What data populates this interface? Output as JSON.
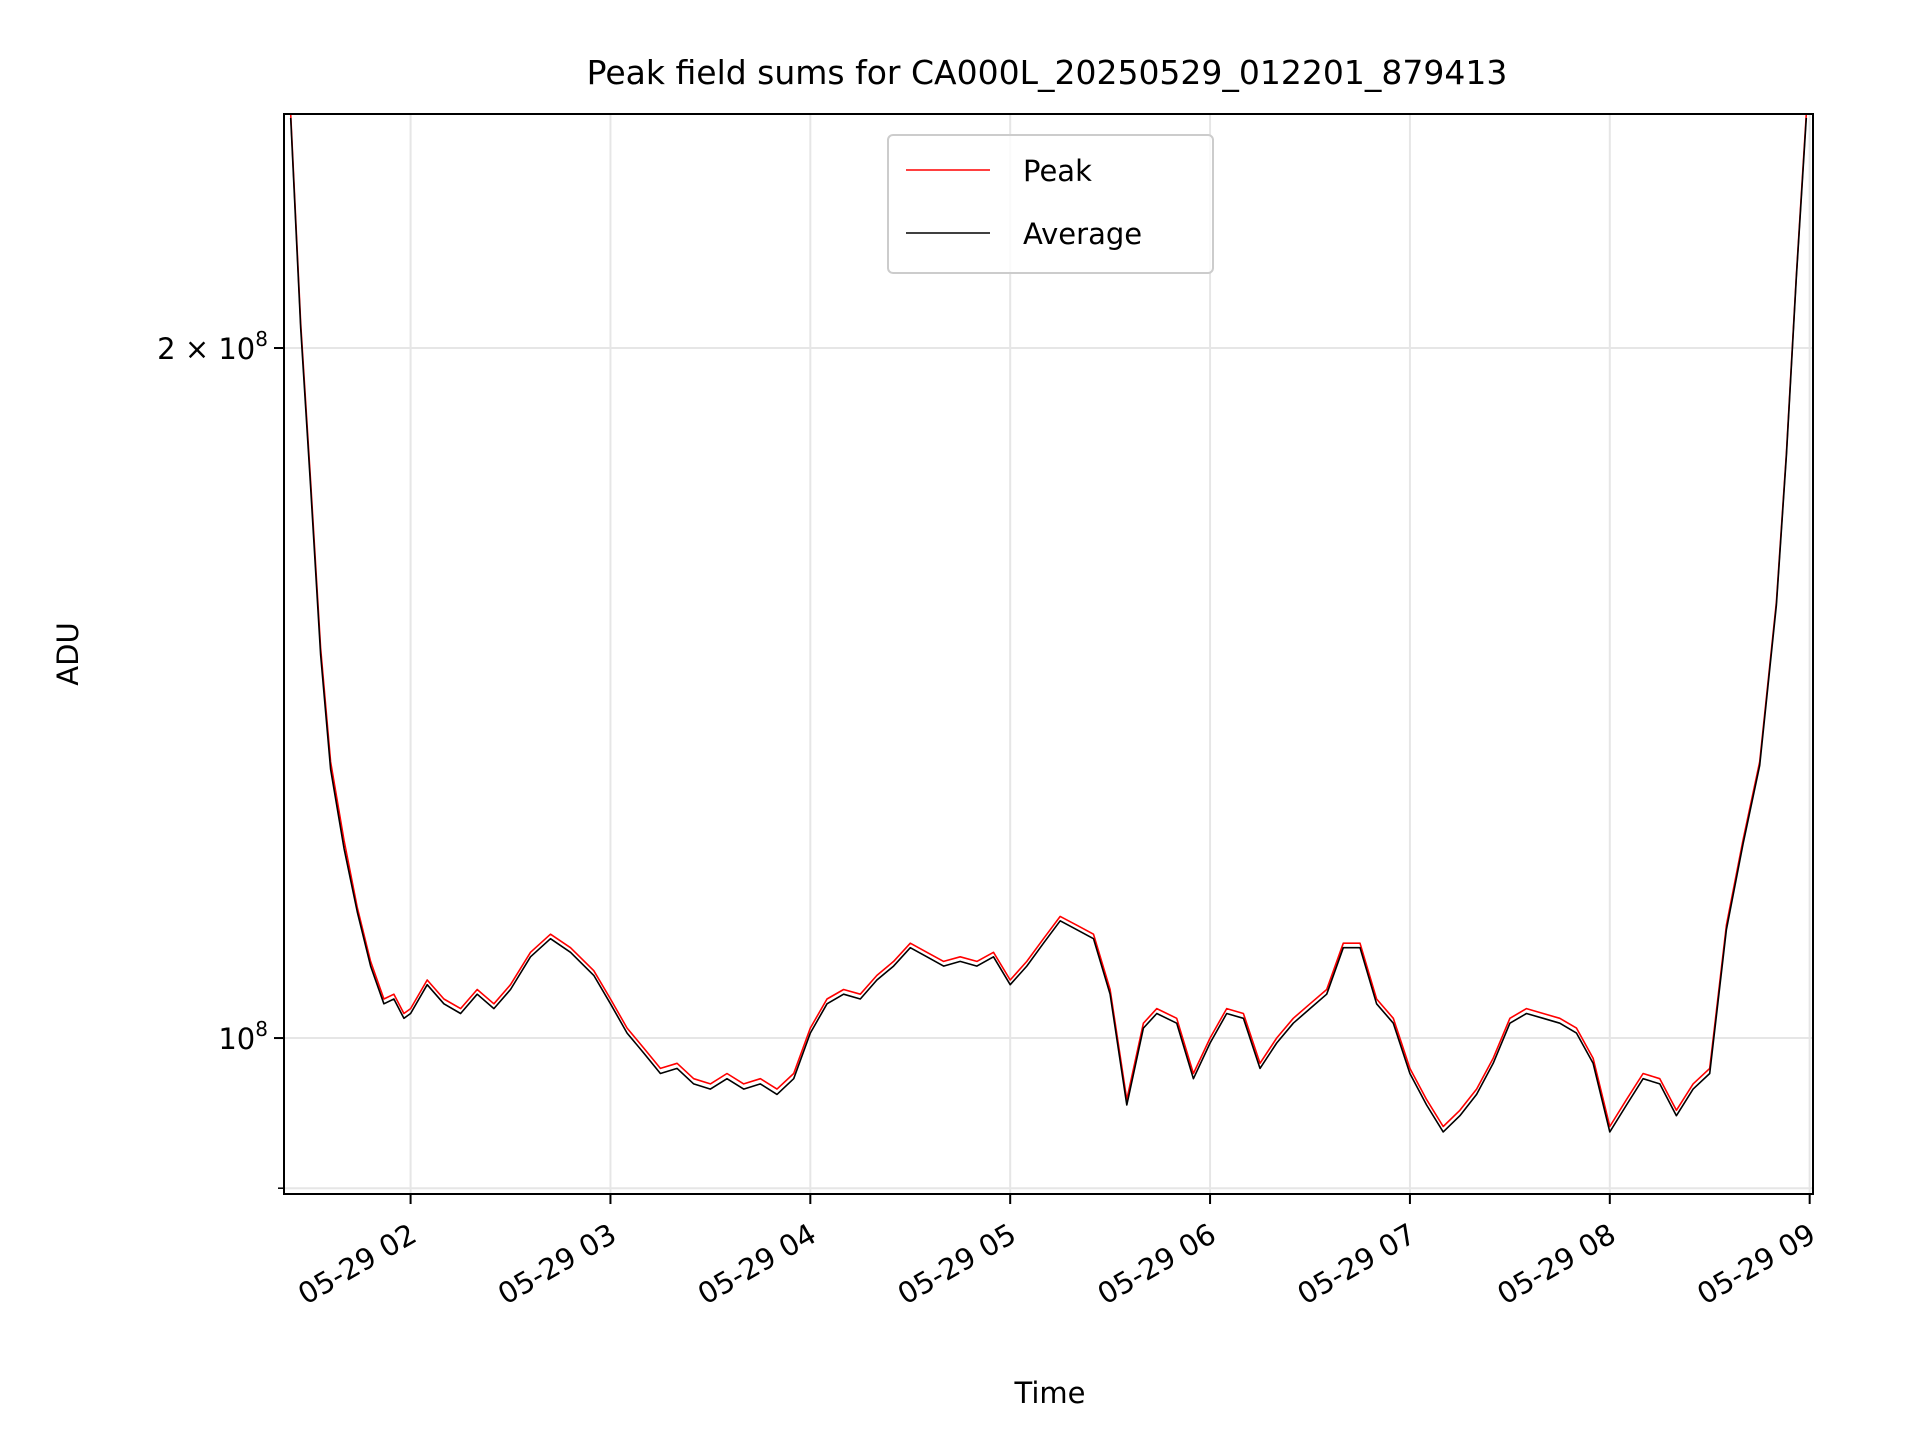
{
  "chart_data": {
    "type": "line",
    "title": "Peak field sums for CA000L_20250529_012201_879413",
    "xlabel": "Time",
    "ylabel": "ADU",
    "y_scale": "log",
    "xlim": [
      "2025-05-29 01:22",
      "2025-05-29 09:01"
    ],
    "ylim": [
      85500000,
      253000000
    ],
    "x_tick_labels": [
      "05-29 02",
      "05-29 03",
      "05-29 04",
      "05-29 05",
      "05-29 06",
      "05-29 07",
      "05-29 08",
      "05-29 09"
    ],
    "x_ticks": [
      "2025-05-29 02:00",
      "2025-05-29 03:00",
      "2025-05-29 04:00",
      "2025-05-29 05:00",
      "2025-05-29 06:00",
      "2025-05-29 07:00",
      "2025-05-29 08:00",
      "2025-05-29 09:00"
    ],
    "y_ticks": [
      {
        "value": 100000000,
        "mantissa": "",
        "exponent": "8",
        "base": "10"
      },
      {
        "value": 200000000,
        "mantissa": "2 × ",
        "exponent": "8",
        "base": "10"
      }
    ],
    "grid": true,
    "legend_position": "top-center",
    "series": [
      {
        "name": "Peak",
        "color": "#ff0000",
        "x": [
          "2025-05-29 01:24",
          "2025-05-29 01:27",
          "2025-05-29 01:30",
          "2025-05-29 01:33",
          "2025-05-29 01:36",
          "2025-05-29 01:40",
          "2025-05-29 01:44",
          "2025-05-29 01:48",
          "2025-05-29 01:52",
          "2025-05-29 01:55",
          "2025-05-29 01:58",
          "2025-05-29 02:00",
          "2025-05-29 02:05",
          "2025-05-29 02:10",
          "2025-05-29 02:15",
          "2025-05-29 02:20",
          "2025-05-29 02:25",
          "2025-05-29 02:30",
          "2025-05-29 02:36",
          "2025-05-29 02:42",
          "2025-05-29 02:48",
          "2025-05-29 02:55",
          "2025-05-29 03:00",
          "2025-05-29 03:05",
          "2025-05-29 03:10",
          "2025-05-29 03:15",
          "2025-05-29 03:20",
          "2025-05-29 03:25",
          "2025-05-29 03:30",
          "2025-05-29 03:35",
          "2025-05-29 03:40",
          "2025-05-29 03:45",
          "2025-05-29 03:50",
          "2025-05-29 03:55",
          "2025-05-29 04:00",
          "2025-05-29 04:05",
          "2025-05-29 04:10",
          "2025-05-29 04:15",
          "2025-05-29 04:20",
          "2025-05-29 04:25",
          "2025-05-29 04:30",
          "2025-05-29 04:35",
          "2025-05-29 04:40",
          "2025-05-29 04:45",
          "2025-05-29 04:50",
          "2025-05-29 04:55",
          "2025-05-29 05:00",
          "2025-05-29 05:05",
          "2025-05-29 05:10",
          "2025-05-29 05:15",
          "2025-05-29 05:20",
          "2025-05-29 05:25",
          "2025-05-29 05:30",
          "2025-05-29 05:35",
          "2025-05-29 05:40",
          "2025-05-29 05:44",
          "2025-05-29 05:50",
          "2025-05-29 05:55",
          "2025-05-29 06:00",
          "2025-05-29 06:05",
          "2025-05-29 06:10",
          "2025-05-29 06:15",
          "2025-05-29 06:20",
          "2025-05-29 06:25",
          "2025-05-29 06:30",
          "2025-05-29 06:35",
          "2025-05-29 06:40",
          "2025-05-29 06:45",
          "2025-05-29 06:50",
          "2025-05-29 06:55",
          "2025-05-29 07:00",
          "2025-05-29 07:05",
          "2025-05-29 07:10",
          "2025-05-29 07:15",
          "2025-05-29 07:20",
          "2025-05-29 07:25",
          "2025-05-29 07:30",
          "2025-05-29 07:35",
          "2025-05-29 07:40",
          "2025-05-29 07:45",
          "2025-05-29 07:50",
          "2025-05-29 07:55",
          "2025-05-29 08:00",
          "2025-05-29 08:05",
          "2025-05-29 08:10",
          "2025-05-29 08:15",
          "2025-05-29 08:20",
          "2025-05-29 08:25",
          "2025-05-29 08:30",
          "2025-05-29 08:35",
          "2025-05-29 08:40",
          "2025-05-29 08:45",
          "2025-05-29 08:50",
          "2025-05-29 08:53",
          "2025-05-29 08:56",
          "2025-05-29 08:59"
        ],
        "y": [
          253000000,
          205000000,
          175000000,
          148000000,
          132000000,
          122000000,
          114000000,
          108000000,
          104000000,
          104500000,
          102500000,
          103000000,
          106000000,
          104000000,
          103000000,
          105000000,
          103500000,
          105500000,
          109000000,
          111000000,
          109500000,
          107000000,
          104000000,
          101000000,
          99000000,
          97000000,
          97500000,
          96000000,
          95500000,
          96500000,
          95500000,
          96000000,
          95000000,
          96500000,
          101000000,
          104000000,
          105000000,
          104500000,
          106500000,
          108000000,
          110000000,
          109000000,
          108000000,
          108500000,
          108000000,
          109000000,
          106000000,
          108000000,
          110500000,
          113000000,
          112000000,
          111000000,
          105000000,
          94000000,
          101500000,
          103000000,
          102000000,
          96500000,
          100000000,
          103000000,
          102500000,
          97500000,
          100000000,
          102000000,
          103500000,
          105000000,
          110000000,
          110000000,
          104000000,
          102000000,
          97000000,
          94000000,
          91500000,
          93000000,
          95000000,
          98000000,
          102000000,
          103000000,
          102500000,
          102000000,
          101000000,
          98000000,
          91500000,
          94000000,
          96500000,
          96000000,
          93000000,
          95500000,
          97000000,
          112000000,
          122000000,
          132000000,
          155000000,
          180000000,
          215000000,
          253000000
        ]
      },
      {
        "name": "Average",
        "color": "#000000",
        "x": [
          "2025-05-29 01:24",
          "2025-05-29 01:27",
          "2025-05-29 01:30",
          "2025-05-29 01:33",
          "2025-05-29 01:36",
          "2025-05-29 01:40",
          "2025-05-29 01:44",
          "2025-05-29 01:48",
          "2025-05-29 01:52",
          "2025-05-29 01:55",
          "2025-05-29 01:58",
          "2025-05-29 02:00",
          "2025-05-29 02:05",
          "2025-05-29 02:10",
          "2025-05-29 02:15",
          "2025-05-29 02:20",
          "2025-05-29 02:25",
          "2025-05-29 02:30",
          "2025-05-29 02:36",
          "2025-05-29 02:42",
          "2025-05-29 02:48",
          "2025-05-29 02:55",
          "2025-05-29 03:00",
          "2025-05-29 03:05",
          "2025-05-29 03:10",
          "2025-05-29 03:15",
          "2025-05-29 03:20",
          "2025-05-29 03:25",
          "2025-05-29 03:30",
          "2025-05-29 03:35",
          "2025-05-29 03:40",
          "2025-05-29 03:45",
          "2025-05-29 03:50",
          "2025-05-29 03:55",
          "2025-05-29 04:00",
          "2025-05-29 04:05",
          "2025-05-29 04:10",
          "2025-05-29 04:15",
          "2025-05-29 04:20",
          "2025-05-29 04:25",
          "2025-05-29 04:30",
          "2025-05-29 04:35",
          "2025-05-29 04:40",
          "2025-05-29 04:45",
          "2025-05-29 04:50",
          "2025-05-29 04:55",
          "2025-05-29 05:00",
          "2025-05-29 05:05",
          "2025-05-29 05:10",
          "2025-05-29 05:15",
          "2025-05-29 05:20",
          "2025-05-29 05:25",
          "2025-05-29 05:30",
          "2025-05-29 05:35",
          "2025-05-29 05:40",
          "2025-05-29 05:44",
          "2025-05-29 05:50",
          "2025-05-29 05:55",
          "2025-05-29 06:00",
          "2025-05-29 06:05",
          "2025-05-29 06:10",
          "2025-05-29 06:15",
          "2025-05-29 06:20",
          "2025-05-29 06:25",
          "2025-05-29 06:30",
          "2025-05-29 06:35",
          "2025-05-29 06:40",
          "2025-05-29 06:45",
          "2025-05-29 06:50",
          "2025-05-29 06:55",
          "2025-05-29 07:00",
          "2025-05-29 07:05",
          "2025-05-29 07:10",
          "2025-05-29 07:15",
          "2025-05-29 07:20",
          "2025-05-29 07:25",
          "2025-05-29 07:30",
          "2025-05-29 07:35",
          "2025-05-29 07:40",
          "2025-05-29 07:45",
          "2025-05-29 07:50",
          "2025-05-29 07:55",
          "2025-05-29 08:00",
          "2025-05-29 08:05",
          "2025-05-29 08:10",
          "2025-05-29 08:15",
          "2025-05-29 08:20",
          "2025-05-29 08:25",
          "2025-05-29 08:30",
          "2025-05-29 08:35",
          "2025-05-29 08:40",
          "2025-05-29 08:45",
          "2025-05-29 08:50",
          "2025-05-29 08:53",
          "2025-05-29 08:56",
          "2025-05-29 08:59"
        ],
        "y": [
          252000000,
          204000000,
          174000000,
          147000000,
          131000000,
          121000000,
          113500000,
          107500000,
          103500000,
          104000000,
          102000000,
          102500000,
          105500000,
          103500000,
          102500000,
          104500000,
          103000000,
          105000000,
          108500000,
          110500000,
          109000000,
          106500000,
          103500000,
          100500000,
          98500000,
          96500000,
          97000000,
          95500000,
          95000000,
          96000000,
          95000000,
          95500000,
          94500000,
          96000000,
          100500000,
          103500000,
          104500000,
          104000000,
          106000000,
          107500000,
          109500000,
          108500000,
          107500000,
          108000000,
          107500000,
          108500000,
          105500000,
          107500000,
          110000000,
          112500000,
          111500000,
          110500000,
          104500000,
          93500000,
          101000000,
          102500000,
          101500000,
          96000000,
          99500000,
          102500000,
          102000000,
          97000000,
          99500000,
          101500000,
          103000000,
          104500000,
          109500000,
          109500000,
          103500000,
          101500000,
          96500000,
          93500000,
          91000000,
          92500000,
          94500000,
          97500000,
          101500000,
          102500000,
          102000000,
          101500000,
          100500000,
          97500000,
          91000000,
          93500000,
          96000000,
          95500000,
          92500000,
          95000000,
          96500000,
          111500000,
          121500000,
          131500000,
          154500000,
          179500000,
          214500000,
          252000000
        ]
      }
    ]
  }
}
